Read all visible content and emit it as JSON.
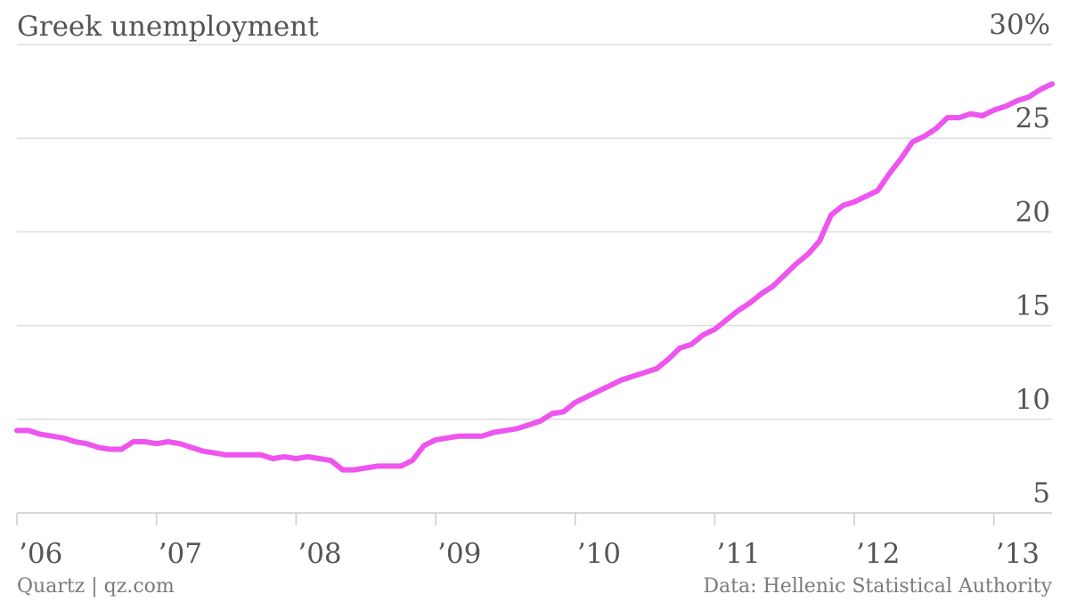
{
  "header": {
    "title": "Greek unemployment"
  },
  "footer": {
    "source_left": "Quartz | qz.com",
    "source_right": "Data: Hellenic Statistical Authority"
  },
  "colors": {
    "line": "#ee55ee",
    "grid": "#dddddd",
    "axis": "#cccccc",
    "text": "#555555"
  },
  "chart_data": {
    "type": "line",
    "title": "Greek unemployment",
    "xlabel": "",
    "ylabel": "",
    "y_unit": "%",
    "ylim": [
      5,
      30
    ],
    "xlim": [
      "2006-01",
      "2013-06"
    ],
    "yticks": [
      5,
      10,
      15,
      20,
      25,
      30
    ],
    "ytick_labels": [
      "5",
      "10",
      "15",
      "20",
      "25",
      "30%"
    ],
    "y_axis_side": "right",
    "grid": true,
    "xtick_positions": [
      "2006-01",
      "2007-01",
      "2008-01",
      "2009-01",
      "2010-01",
      "2011-01",
      "2012-01",
      "2013-01"
    ],
    "xtick_labels": [
      "’06",
      "’07",
      "’08",
      "’09",
      "’10",
      "’11",
      "’12",
      "’13"
    ],
    "series": [
      {
        "x": [
          "2006-01",
          "2006-02",
          "2006-03",
          "2006-04",
          "2006-05",
          "2006-06",
          "2006-07",
          "2006-08",
          "2006-09",
          "2006-10",
          "2006-11",
          "2006-12",
          "2007-01",
          "2007-02",
          "2007-03",
          "2007-04",
          "2007-05",
          "2007-06",
          "2007-07",
          "2007-08",
          "2007-09",
          "2007-10",
          "2007-11",
          "2007-12",
          "2008-01",
          "2008-02",
          "2008-03",
          "2008-04",
          "2008-05",
          "2008-06",
          "2008-07",
          "2008-08",
          "2008-09",
          "2008-10",
          "2008-11",
          "2008-12",
          "2009-01",
          "2009-02",
          "2009-03",
          "2009-04",
          "2009-05",
          "2009-06",
          "2009-07",
          "2009-08",
          "2009-09",
          "2009-10",
          "2009-11",
          "2009-12",
          "2010-01",
          "2010-02",
          "2010-03",
          "2010-04",
          "2010-05",
          "2010-06",
          "2010-07",
          "2010-08",
          "2010-09",
          "2010-10",
          "2010-11",
          "2010-12",
          "2011-01",
          "2011-02",
          "2011-03",
          "2011-04",
          "2011-05",
          "2011-06",
          "2011-07",
          "2011-08",
          "2011-09",
          "2011-10",
          "2011-11",
          "2011-12",
          "2012-01",
          "2012-02",
          "2012-03",
          "2012-04",
          "2012-05",
          "2012-06",
          "2012-07",
          "2012-08",
          "2012-09",
          "2012-10",
          "2012-11",
          "2012-12",
          "2013-01",
          "2013-02",
          "2013-03",
          "2013-04",
          "2013-05",
          "2013-06"
        ],
        "values": [
          9.4,
          9.4,
          9.2,
          9.1,
          9.0,
          8.8,
          8.7,
          8.5,
          8.4,
          8.4,
          8.8,
          8.8,
          8.7,
          8.8,
          8.7,
          8.5,
          8.3,
          8.2,
          8.1,
          8.1,
          8.1,
          8.1,
          7.9,
          8.0,
          7.9,
          8.0,
          7.9,
          7.8,
          7.3,
          7.3,
          7.4,
          7.5,
          7.5,
          7.5,
          7.8,
          8.6,
          8.9,
          9.0,
          9.1,
          9.1,
          9.1,
          9.3,
          9.4,
          9.5,
          9.7,
          9.9,
          10.3,
          10.4,
          10.9,
          11.2,
          11.5,
          11.8,
          12.1,
          12.3,
          12.5,
          12.7,
          13.2,
          13.8,
          14.0,
          14.5,
          14.8,
          15.3,
          15.8,
          16.2,
          16.7,
          17.1,
          17.7,
          18.3,
          18.8,
          19.5,
          20.9,
          21.4,
          21.6,
          21.9,
          22.2,
          23.1,
          23.9,
          24.8,
          25.1,
          25.5,
          26.1,
          26.1,
          26.3,
          26.2,
          26.5,
          26.7,
          27.0,
          27.2,
          27.6,
          27.9
        ]
      }
    ]
  }
}
